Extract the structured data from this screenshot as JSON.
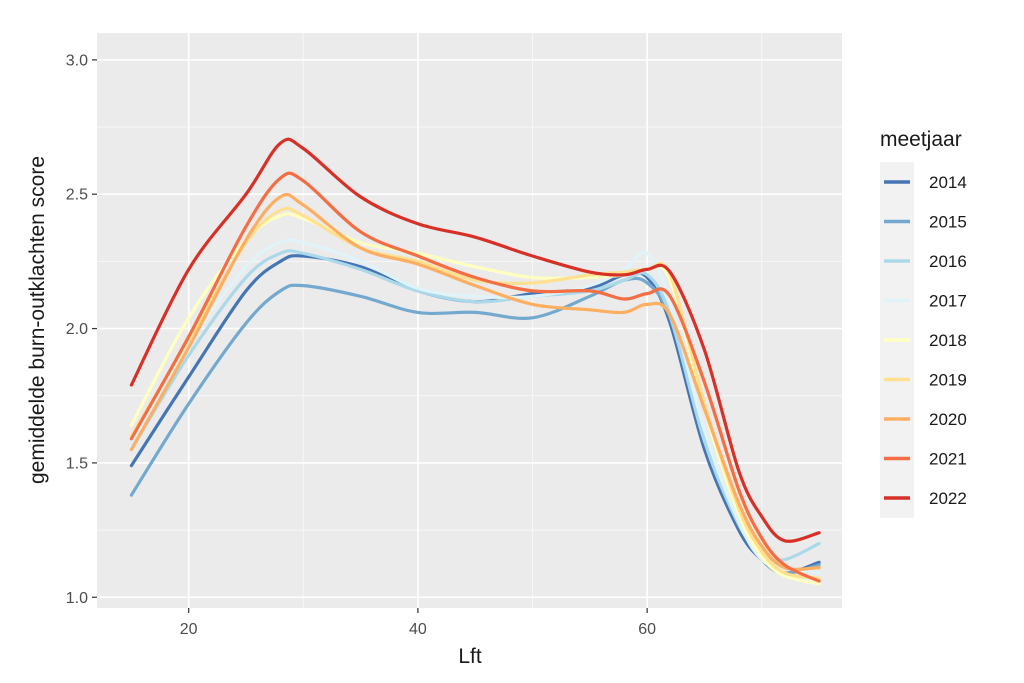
{
  "chart_data": {
    "type": "line",
    "xlabel": "Lft",
    "ylabel": "gemiddelde burn-outklachten score",
    "xlim": [
      12,
      77
    ],
    "ylim": [
      0.96,
      3.1
    ],
    "x_ticks": [
      20,
      40,
      60
    ],
    "y_ticks": [
      1.0,
      1.5,
      2.0,
      2.5,
      3.0
    ],
    "x_tick_labels": [
      "20",
      "40",
      "60"
    ],
    "y_tick_labels": [
      "1.0",
      "1.5",
      "2.0",
      "2.5",
      "3.0"
    ],
    "grid": true,
    "legend": {
      "title": "meetjaar",
      "position": "right"
    },
    "x": [
      15,
      20,
      25,
      28,
      30,
      35,
      40,
      45,
      50,
      55,
      58,
      60,
      62,
      65,
      68,
      70,
      72,
      75
    ],
    "series": [
      {
        "name": "2014",
        "color": "#4575b4",
        "values": [
          1.49,
          1.82,
          2.14,
          2.25,
          2.27,
          2.23,
          2.14,
          2.1,
          2.13,
          2.15,
          2.2,
          2.19,
          2.02,
          1.55,
          1.25,
          1.14,
          1.09,
          1.13
        ]
      },
      {
        "name": "2015",
        "color": "#74a9cf",
        "values": [
          1.38,
          1.72,
          2.02,
          2.14,
          2.16,
          2.12,
          2.06,
          2.06,
          2.04,
          2.12,
          2.18,
          2.17,
          2.04,
          1.6,
          1.28,
          1.14,
          1.09,
          1.12
        ]
      },
      {
        "name": "2016",
        "color": "#abd9e9",
        "values": [
          1.55,
          1.9,
          2.19,
          2.28,
          2.28,
          2.22,
          2.14,
          2.1,
          2.12,
          2.14,
          2.18,
          2.2,
          2.05,
          1.58,
          1.27,
          1.16,
          1.14,
          1.2
        ]
      },
      {
        "name": "2017",
        "color": "#e0f3f8",
        "values": [
          1.56,
          1.94,
          2.23,
          2.32,
          2.32,
          2.25,
          2.15,
          2.12,
          2.12,
          2.16,
          2.22,
          2.28,
          2.1,
          1.62,
          1.28,
          1.14,
          1.11,
          1.09
        ]
      },
      {
        "name": "2018",
        "color": "#ffffbf",
        "values": [
          1.64,
          2.04,
          2.33,
          2.42,
          2.41,
          2.32,
          2.28,
          2.23,
          2.19,
          2.19,
          2.2,
          2.22,
          2.18,
          1.7,
          1.31,
          1.15,
          1.08,
          1.05
        ]
      },
      {
        "name": "2019",
        "color": "#fee090",
        "values": [
          1.6,
          1.96,
          2.32,
          2.44,
          2.42,
          2.3,
          2.25,
          2.18,
          2.17,
          2.2,
          2.21,
          2.22,
          2.2,
          1.72,
          1.33,
          1.17,
          1.09,
          1.07
        ]
      },
      {
        "name": "2020",
        "color": "#fdae61",
        "values": [
          1.55,
          1.93,
          2.33,
          2.49,
          2.46,
          2.3,
          2.24,
          2.16,
          2.09,
          2.07,
          2.06,
          2.09,
          2.05,
          1.7,
          1.35,
          1.19,
          1.11,
          1.11
        ]
      },
      {
        "name": "2021",
        "color": "#f46d43",
        "values": [
          1.59,
          1.97,
          2.38,
          2.56,
          2.55,
          2.36,
          2.27,
          2.19,
          2.14,
          2.14,
          2.11,
          2.13,
          2.12,
          1.8,
          1.4,
          1.22,
          1.12,
          1.06
        ]
      },
      {
        "name": "2022",
        "color": "#d73027",
        "values": [
          1.79,
          2.22,
          2.5,
          2.69,
          2.67,
          2.49,
          2.39,
          2.34,
          2.27,
          2.21,
          2.2,
          2.22,
          2.21,
          1.92,
          1.47,
          1.3,
          1.21,
          1.24
        ]
      }
    ]
  }
}
